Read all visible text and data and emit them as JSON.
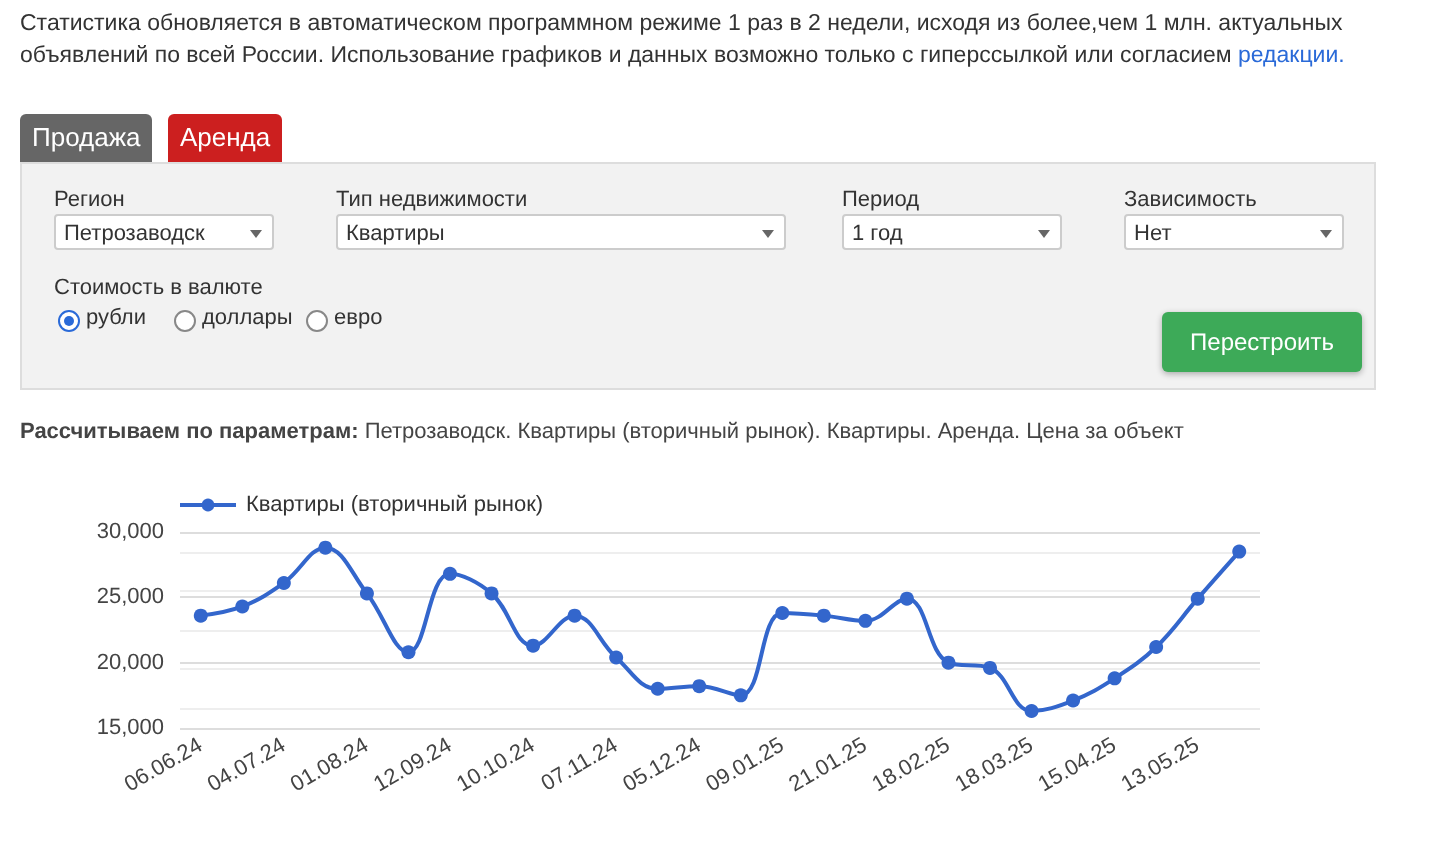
{
  "chart_data": {
    "type": "line",
    "title": "Рассчитываем по параметрам:",
    "subtitle": "Петрозаводск. Квартиры (вторичный рынок). Квартиры. Аренда. Цена за объект",
    "annotations": [
      "Статистика обновляется в автоматическом программном режиме 1 раз в 2 недели, исходя из более,чем 1 млн. актуальных объявлений по всей России. Использование графиков и данных возможно только с гиперссылкой или согласием",
      "редакции.",
      "Продажа",
      "Аренда",
      "Регион",
      "Петрозаводск",
      "Тип недвижимости",
      "Квартиры",
      "Период",
      "1 год",
      "Зависимость",
      "Нет",
      "Стоимость в валюте",
      "рубли",
      "доллары",
      "евро",
      "Перестроить"
    ],
    "categories": [
      "06.06.24",
      null,
      "04.07.24",
      null,
      "01.08.24",
      null,
      "12.09.24",
      null,
      "10.10.24",
      null,
      "07.11.24",
      null,
      "05.12.24",
      null,
      "09.01.25",
      null,
      "21.01.25",
      null,
      "18.02.25",
      null,
      "18.03.25",
      null,
      "15.04.25",
      null,
      "13.05.25",
      null
    ],
    "series": [
      {
        "name": "Квартиры (вторичный рынок)",
        "color": "#3366cc",
        "values": [
          23600,
          24300,
          26100,
          28800,
          25300,
          20800,
          26800,
          25300,
          21300,
          23600,
          20400,
          18000,
          18200,
          17500,
          23800,
          23600,
          23200,
          24900,
          20000,
          19600,
          16300,
          17100,
          18800,
          21200,
          24900,
          28500
        ]
      }
    ],
    "ylim": [
      15000,
      30000
    ],
    "yticks": [
      {
        "value": 15000,
        "label": "15,000"
      },
      {
        "value": 20000,
        "label": "20,000"
      },
      {
        "value": 25000,
        "label": "25,000"
      },
      {
        "value": 30000,
        "label": "30,000"
      }
    ],
    "grid": "y",
    "legend": "top left",
    "marker": "circle",
    "line_style": "solid"
  }
}
